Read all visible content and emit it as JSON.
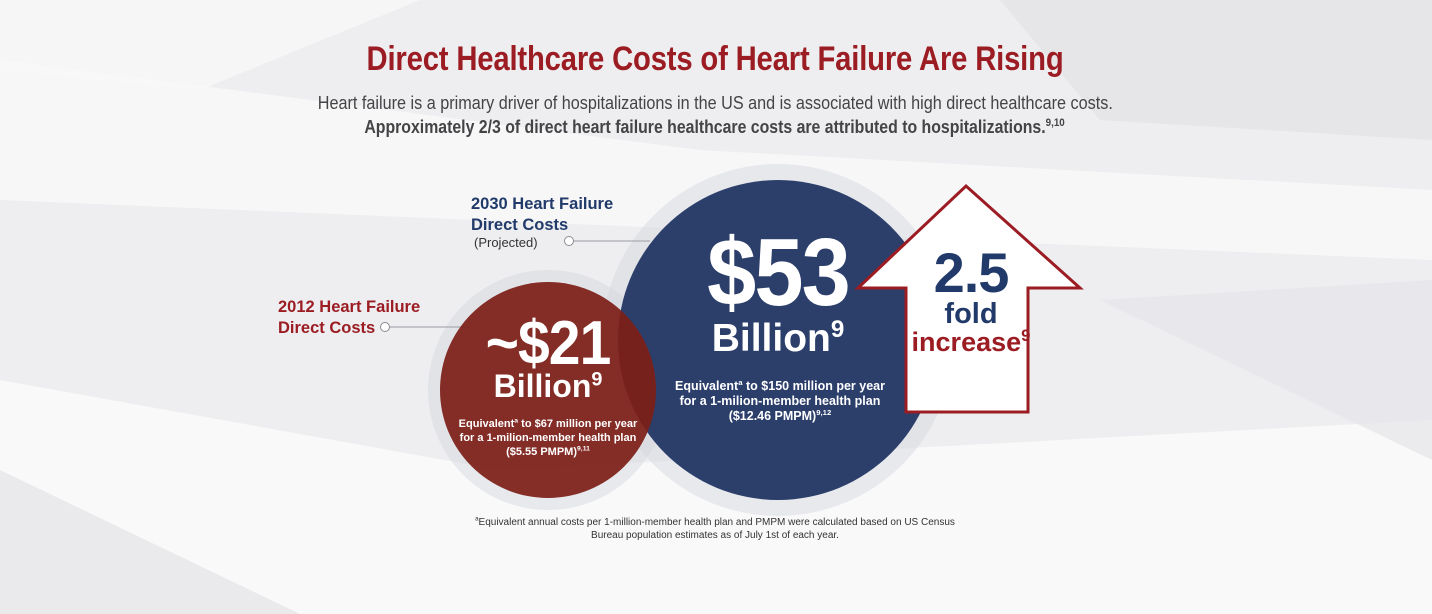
{
  "header": {
    "title": "Direct Healthcare Costs of Heart Failure Are Rising",
    "line1": "Heart failure is a primary driver of hospitalizations in the US and is associated with high direct healthcare costs.",
    "line2": "Approximately 2/3 of direct heart failure healthcare costs are attributed to hospitalizations.",
    "line2_refs": "9,10"
  },
  "cost_2030": {
    "label_line1": "2030 Heart Failure",
    "label_line2": "Direct Costs",
    "projected": "(Projected)",
    "value": "$53",
    "unit": "Billion",
    "unit_ref": "9",
    "equiv_word": "Equivalent",
    "equiv_sup": "a",
    "equiv_rest": " to $150 million per year for a 1-milion-member health plan ($12.46 PMPM)",
    "equiv_refs": "9,12",
    "color": "#2c3f6b"
  },
  "cost_2012": {
    "label_line1": "2012 Heart Failure",
    "label_line2": "Direct Costs",
    "value": "~$21",
    "unit": "Billion",
    "unit_ref": "9",
    "equiv_word": "Equivalent",
    "equiv_sup": "a",
    "equiv_rest": " to $67 million per year for a 1-milion-member health plan ($5.55 PMPM)",
    "equiv_refs": "9,11",
    "color": "#7d1f18"
  },
  "increase": {
    "value": "2.5",
    "line2": "fold",
    "line3": "increase",
    "ref": "9",
    "arrow_color": "#9b1c22"
  },
  "footnote": {
    "sup": "a",
    "text": "Equivalent annual costs per 1-million-member health plan and PMPM were calculated based on US Census Bureau population estimates as of July 1st of each year."
  },
  "colors": {
    "title_red": "#9b1c22",
    "navy": "#213a69"
  }
}
